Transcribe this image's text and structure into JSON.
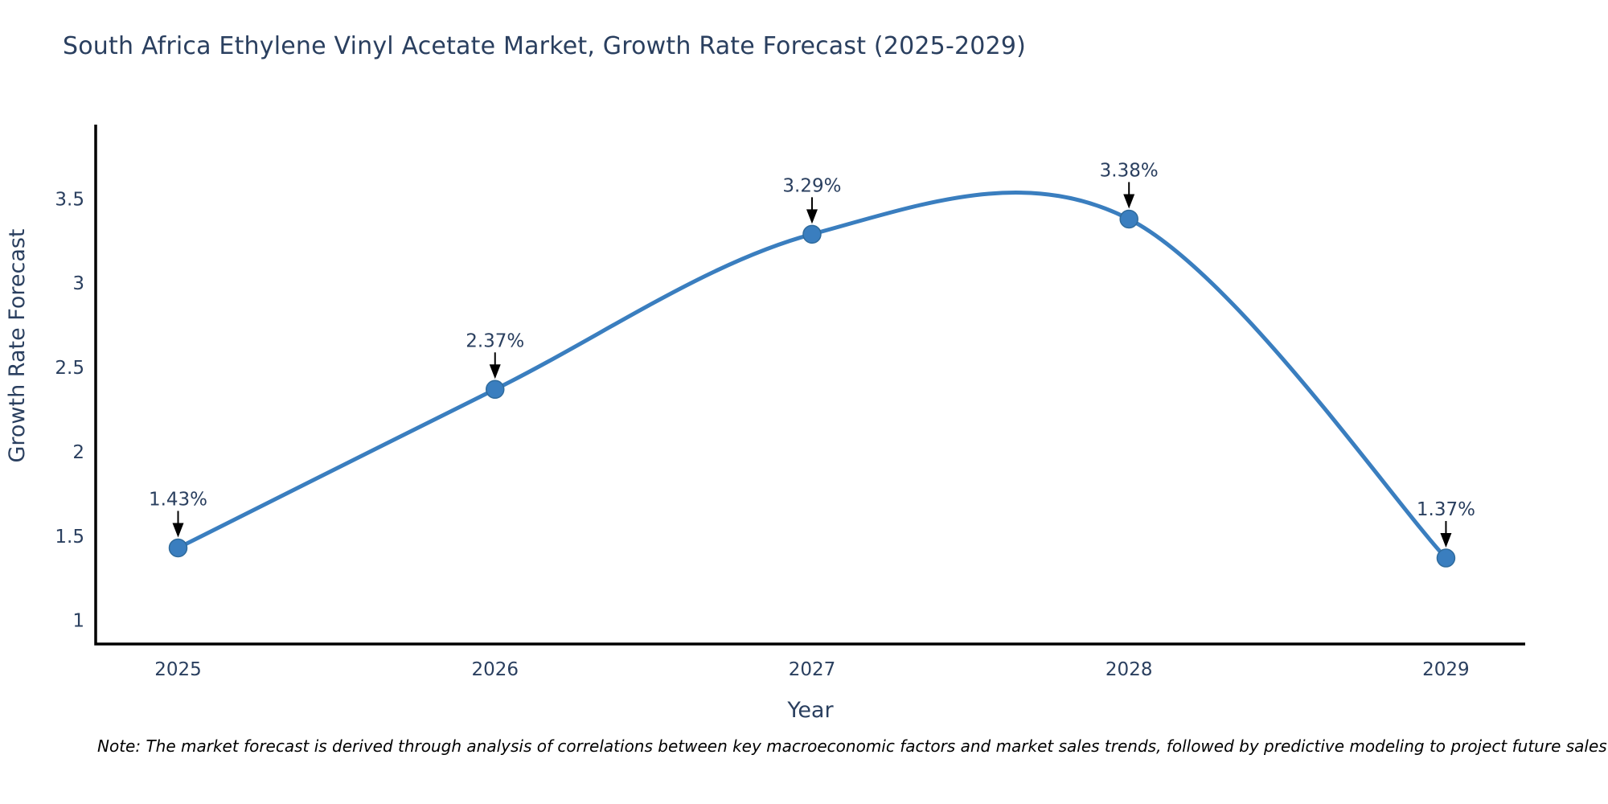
{
  "title": "South Africa Ethylene Vinyl Acetate Market, Growth Rate Forecast (2025-2029)",
  "note": "Note: The market forecast is derived through analysis of correlations between key macroeconomic factors and market sales trends, followed by predictive modeling to project future sales",
  "chart_data": {
    "type": "line",
    "line_shape": "spline",
    "title": "South Africa Ethylene Vinyl Acetate Market, Growth Rate Forecast (2025-2029)",
    "x": [
      2025,
      2026,
      2027,
      2028,
      2029
    ],
    "values": [
      1.43,
      2.37,
      3.29,
      3.38,
      1.37
    ],
    "point_labels": [
      "1.43%",
      "2.37%",
      "3.29%",
      "3.38%",
      "1.37%"
    ],
    "xlabel": "Year",
    "ylabel": "Growth Rate Forecast",
    "xticks": [
      "2025",
      "2026",
      "2027",
      "2028",
      "2029"
    ],
    "yticks": [
      1,
      1.5,
      2,
      2.5,
      3,
      3.5
    ],
    "xlim": [
      2024.74,
      2029.25
    ],
    "ylim": [
      0.86,
      3.94
    ],
    "grid": false,
    "legend": false,
    "annotations": "black down-arrows from each percentage label to its data point",
    "colors": {
      "line": "#3a7ebf",
      "marker_fill": "#3a7ebf",
      "marker_edge": "#2f6b9d",
      "axis": "#000000",
      "tick_text": "#2a3f5f",
      "title_text": "#2a3f5f",
      "arrow": "#000000",
      "note_text": "#000000"
    }
  }
}
